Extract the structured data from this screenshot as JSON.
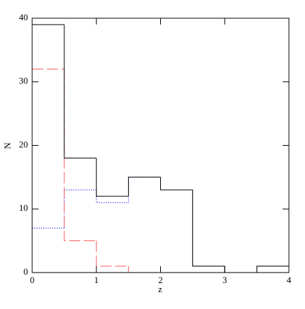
{
  "chart_data": {
    "type": "histogram",
    "xlabel": "z",
    "ylabel": "N",
    "bins": [
      0,
      0.5,
      1,
      1.5,
      2,
      2.5,
      3,
      3.5,
      4
    ],
    "series": [
      {
        "color": "#0000cc",
        "linestyle": "dotted",
        "values": [
          7,
          13,
          11,
          15,
          13,
          1,
          0,
          1
        ]
      },
      {
        "color": "#ff5a5a",
        "linestyle": "dashed",
        "values": [
          32,
          5,
          1,
          0,
          0,
          0,
          0,
          0
        ]
      },
      {
        "color": "#000000",
        "linestyle": "solid",
        "values": [
          39,
          18,
          12,
          15,
          13,
          1,
          0,
          1
        ]
      }
    ],
    "xlim": [
      0,
      4
    ],
    "ylim": [
      0,
      40
    ],
    "xticks": [
      0,
      1,
      2,
      3,
      4
    ],
    "yticks": [
      0,
      10,
      20,
      30,
      40
    ],
    "grid": false
  }
}
